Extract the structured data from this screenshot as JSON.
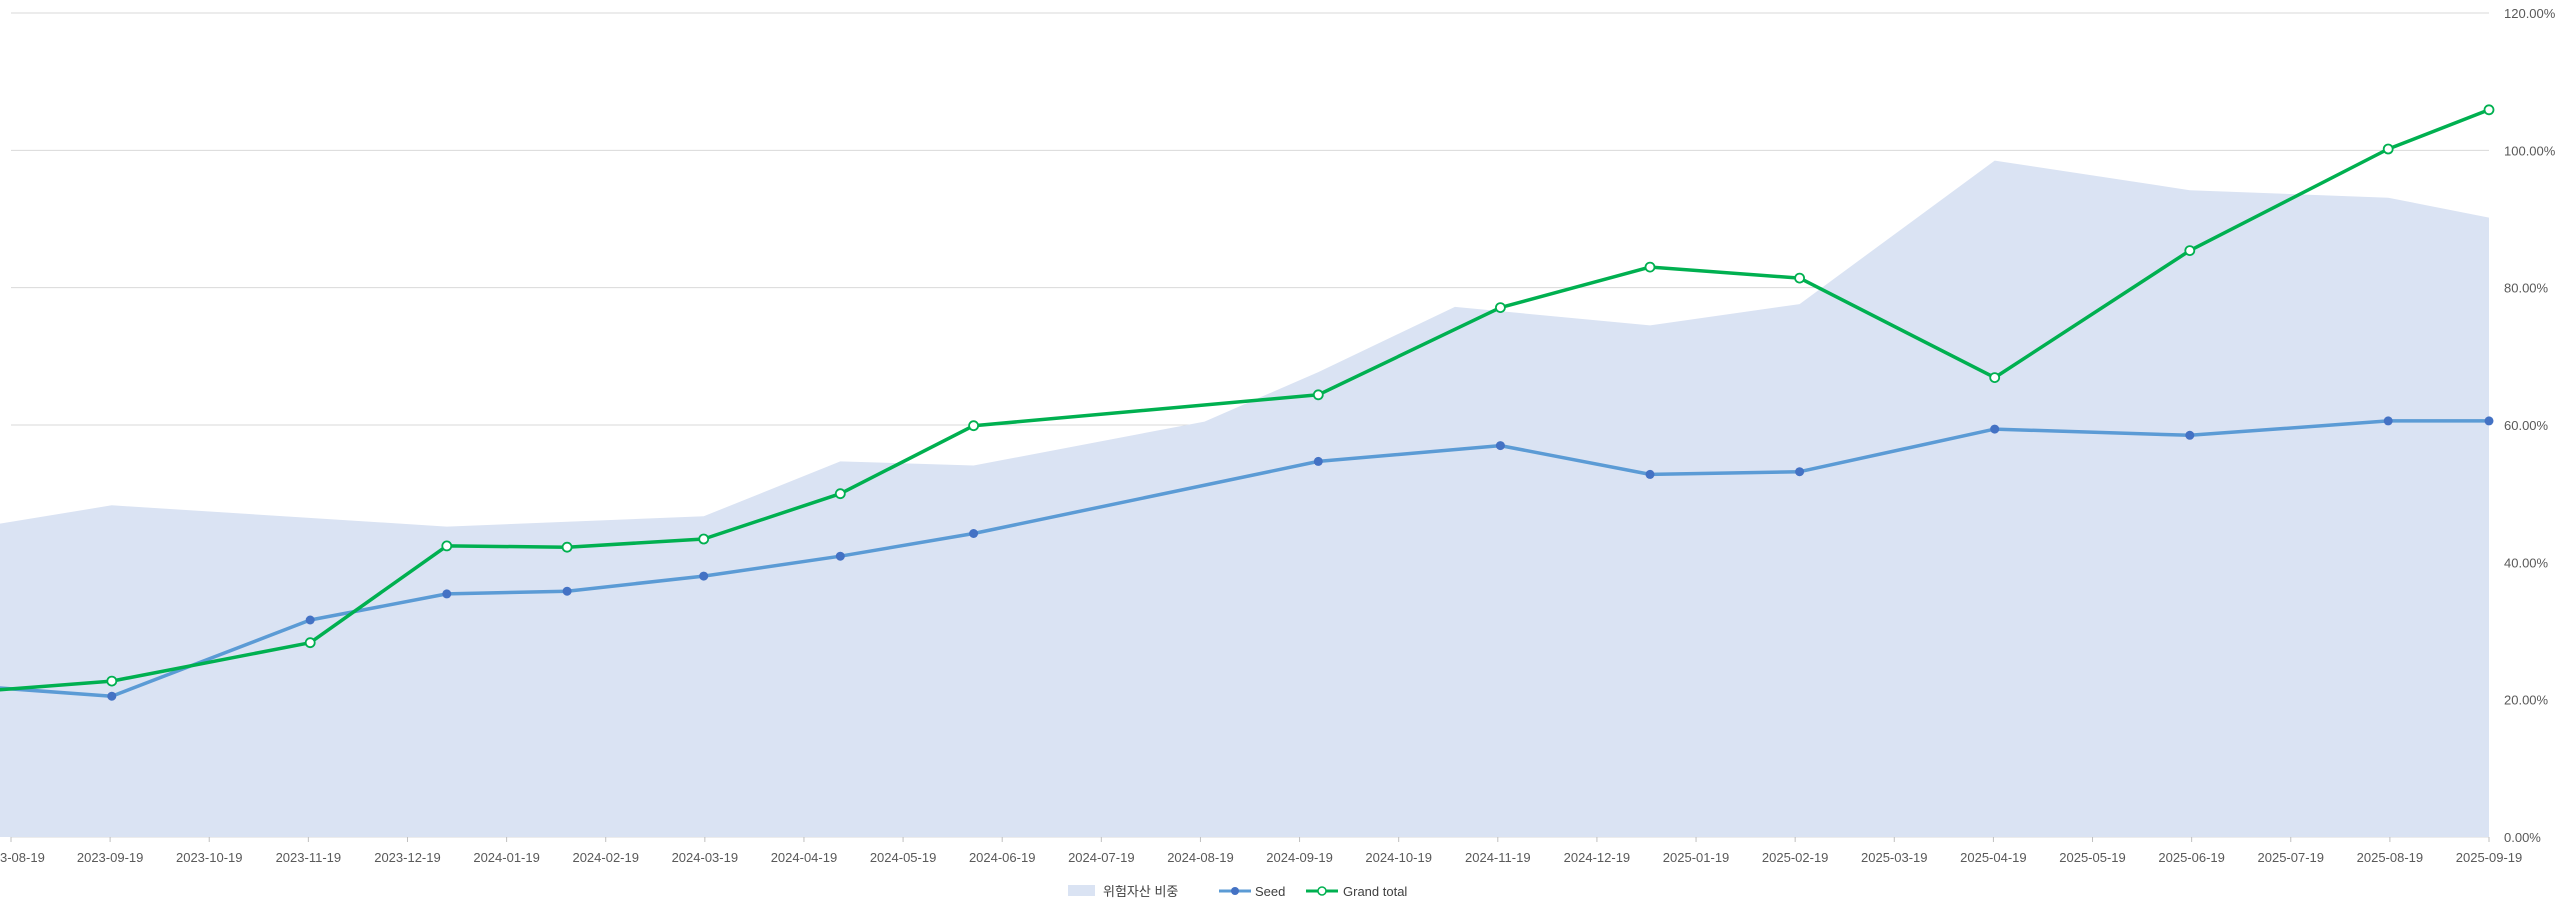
{
  "chart_data": {
    "type": "line",
    "x": [
      "2023-08-01",
      "2023-09-19",
      "2023-11-19",
      "2023-12-31",
      "2024-02-06",
      "2024-03-19",
      "2024-04-30",
      "2024-06-10",
      "2024-09-24",
      "2024-11-19",
      "2025-01-04",
      "2025-02-19",
      "2025-04-20",
      "2025-06-19",
      "2025-08-19",
      "2025-09-19"
    ],
    "x_tick_labels": [
      "3-08-19",
      "2023-09-19",
      "2023-10-19",
      "2023-11-19",
      "2023-12-19",
      "2024-01-19",
      "2024-02-19",
      "2024-03-19",
      "2024-04-19",
      "2024-05-19",
      "2024-06-19",
      "2024-07-19",
      "2024-08-19",
      "2024-09-19",
      "2024-10-19",
      "2024-11-19",
      "2024-12-19",
      "2025-01-19",
      "2025-02-19",
      "2025-03-19",
      "2025-04-19",
      "2025-05-19",
      "2025-06-19",
      "2025-07-19",
      "2025-08-19",
      "2025-09-19"
    ],
    "y_tick_labels": [
      "0.00%",
      "20.00%",
      "40.00%",
      "60.00%",
      "80.00%",
      "100.00%",
      "120.00%"
    ],
    "ylim": [
      0,
      120
    ],
    "y_unit": "%",
    "grid": true,
    "legend_position": "bottom",
    "area": {
      "name": "위험자산 비중",
      "color": "#dae3f3",
      "points": [
        [
          "2023-08-01",
          44.5
        ],
        [
          "2023-09-19",
          48.3
        ],
        [
          "2023-12-31",
          45.2
        ],
        [
          "2024-03-19",
          46.7
        ],
        [
          "2024-04-30",
          54.7
        ],
        [
          "2024-06-10",
          54.1
        ],
        [
          "2024-08-20",
          60.5
        ],
        [
          "2024-09-24",
          67.7
        ],
        [
          "2024-11-05",
          77.2
        ],
        [
          "2025-01-04",
          74.5
        ],
        [
          "2025-02-19",
          77.6
        ],
        [
          "2025-04-20",
          98.5
        ],
        [
          "2025-06-19",
          94.2
        ],
        [
          "2025-08-19",
          93.1
        ],
        [
          "2025-09-19",
          90.2
        ]
      ]
    },
    "series": [
      {
        "name": "Seed",
        "color": "#5b9bd5",
        "marker_color": "#4472c4",
        "values": [
          22.2,
          20.5,
          31.6,
          35.4,
          35.8,
          38.0,
          40.9,
          44.2,
          54.7,
          57.0,
          52.8,
          53.2,
          59.4,
          58.5,
          60.6,
          60.6
        ]
      },
      {
        "name": "Grand total",
        "color": "#00b050",
        "values": [
          20.9,
          22.7,
          28.3,
          42.4,
          42.2,
          43.4,
          50.0,
          59.9,
          64.4,
          77.1,
          83.0,
          81.4,
          66.9,
          85.4,
          100.2,
          105.9
        ]
      }
    ]
  }
}
